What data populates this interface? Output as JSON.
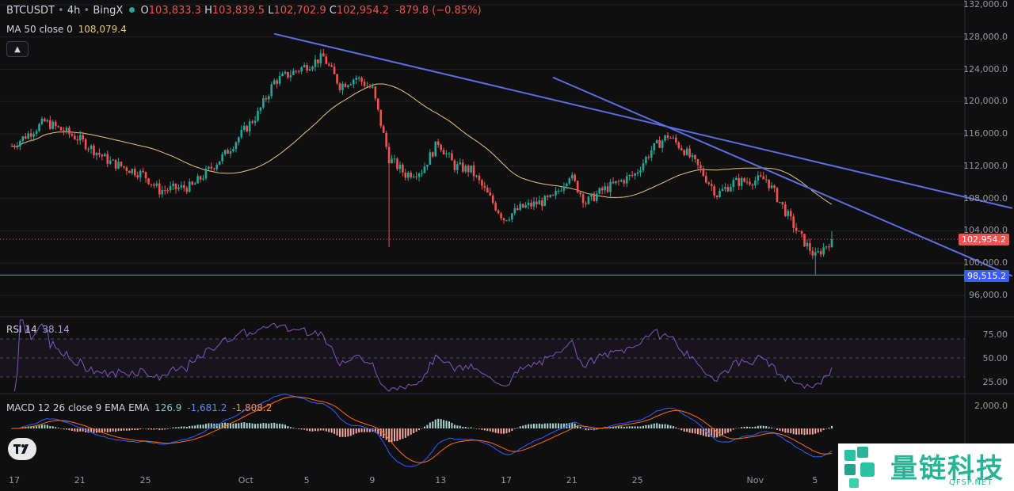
{
  "header": {
    "symbol": "BTCUSDT",
    "sep1": "•",
    "interval": "4h",
    "sep2": "•",
    "exchange": "BingX",
    "open_label": "O",
    "open": "103,833.3",
    "high_label": "H",
    "high": "103,839.5",
    "low_label": "L",
    "low": "102,702.9",
    "close_label": "C",
    "close": "102,954.2",
    "change": "-879.8 (−0.85%)"
  },
  "ma": {
    "label": "MA 50 close 0",
    "value": "108,079.4"
  },
  "rsi": {
    "label": "RSI 14",
    "value": "38.14",
    "levels": [
      "75.00",
      "50.00",
      "25.00"
    ]
  },
  "macd": {
    "label": "MACD 12 26 close 9 EMA EMA",
    "hist": "126.9",
    "macd": "-1,681.2",
    "signal": "-1,808.2",
    "level": "2,000.0"
  },
  "price_axis": [
    "132,000.0",
    "128,000.0",
    "124,000.0",
    "120,000.0",
    "116,000.0",
    "112,000.0",
    "108,000.0",
    "104,000.0",
    "100,000.0",
    "96,000.0"
  ],
  "price_tags": {
    "last": "102,954.2",
    "support": "98,515.2"
  },
  "dates": [
    "17",
    "21",
    "25",
    "Oct",
    "5",
    "9",
    "13",
    "17",
    "21",
    "25",
    "Nov",
    "5"
  ],
  "watermark": {
    "brand": "量链科技",
    "site": "QFSP.NET"
  },
  "colors": {
    "up": "#26a69a",
    "down": "#ef5350",
    "ma": "#e8c77a",
    "trend": "#5b6ee1",
    "rsi": "#7e57c2",
    "macd": "#2962ff",
    "signal": "#ff6d00"
  },
  "chart_data": {
    "type": "candlestick",
    "interval": "4h",
    "ylim": [
      94000,
      132000
    ],
    "anchors": [
      {
        "date": "Sep 17",
        "price": 114500
      },
      {
        "date": "Sep 19",
        "price": 117500
      },
      {
        "date": "Sep 21",
        "price": 115500
      },
      {
        "date": "Sep 23",
        "price": 112500
      },
      {
        "date": "Sep 25",
        "price": 111000
      },
      {
        "date": "Sep 26",
        "price": 109000
      },
      {
        "date": "Sep 28",
        "price": 109500
      },
      {
        "date": "Sep 30",
        "price": 113500
      },
      {
        "date": "Oct 2",
        "price": 118500
      },
      {
        "date": "Oct 3",
        "price": 122500
      },
      {
        "date": "Oct 5",
        "price": 124500
      },
      {
        "date": "Oct 6",
        "price": 125500
      },
      {
        "date": "Oct 7",
        "price": 122000
      },
      {
        "date": "Oct 8",
        "price": 123000
      },
      {
        "date": "Oct 9",
        "price": 121500
      },
      {
        "date": "Oct 10",
        "price": 113000
      },
      {
        "date": "Oct 11",
        "price": 111000
      },
      {
        "date": "Oct 12",
        "price": 111500
      },
      {
        "date": "Oct 13",
        "price": 115000
      },
      {
        "date": "Oct 14",
        "price": 112000
      },
      {
        "date": "Oct 15",
        "price": 111500
      },
      {
        "date": "Oct 17",
        "price": 105500
      },
      {
        "date": "Oct 18",
        "price": 106800
      },
      {
        "date": "Oct 20",
        "price": 108000
      },
      {
        "date": "Oct 21",
        "price": 111000
      },
      {
        "date": "Oct 22",
        "price": 107500
      },
      {
        "date": "Oct 23",
        "price": 109000
      },
      {
        "date": "Oct 25",
        "price": 111000
      },
      {
        "date": "Oct 26",
        "price": 114000
      },
      {
        "date": "Oct 27",
        "price": 115800
      },
      {
        "date": "Oct 28",
        "price": 114000
      },
      {
        "date": "Oct 29",
        "price": 111500
      },
      {
        "date": "Oct 30",
        "price": 108500
      },
      {
        "date": "Oct 31",
        "price": 110000
      },
      {
        "date": "Nov 1",
        "price": 110200
      },
      {
        "date": "Nov 2",
        "price": 110400
      },
      {
        "date": "Nov 3",
        "price": 107000
      },
      {
        "date": "Nov 4",
        "price": 103500
      },
      {
        "date": "Nov 5",
        "price": 100800
      },
      {
        "date": "Nov 6",
        "price": 102954
      }
    ],
    "wicks": [
      {
        "date": "Oct 10",
        "low": 102000
      },
      {
        "date": "Nov 5",
        "low": 98600
      }
    ],
    "trendlines": [
      {
        "from": {
          "date": "Oct 3",
          "price": 128400
        },
        "to": {
          "date": "Nov 17",
          "price": 106800
        }
      },
      {
        "from": {
          "date": "Oct 20",
          "price": 123000
        },
        "to": {
          "date": "Nov 17",
          "price": 98400
        }
      }
    ],
    "support": 98515.2,
    "last_price": 102954.2
  }
}
